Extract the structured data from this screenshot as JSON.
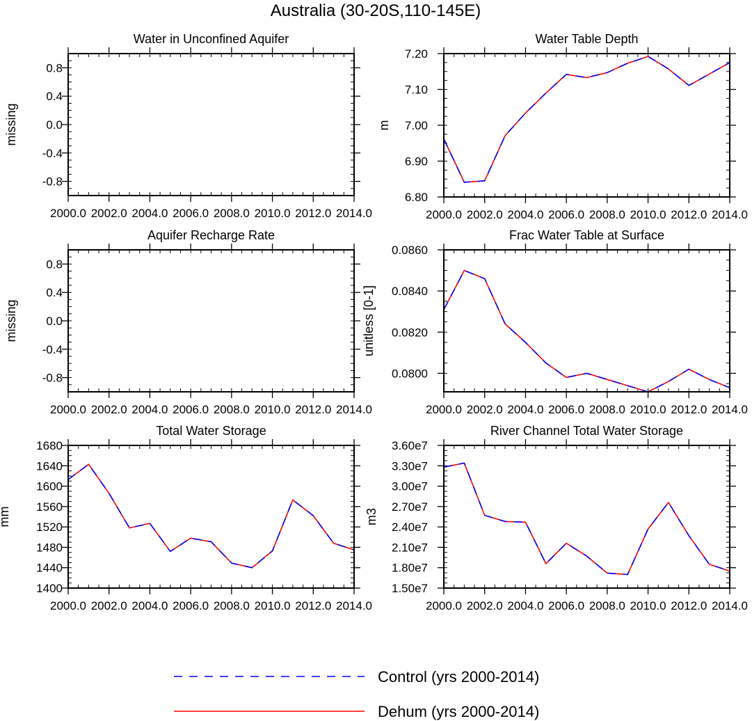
{
  "title": "Australia (30-20S,110-145E)",
  "colors": {
    "control": "#0000ff",
    "dehum": "#ff0000",
    "axis": "#000000"
  },
  "legend": [
    {
      "label": "Control (yrs 2000-2014)",
      "color": "#0000ff",
      "style": "dashed"
    },
    {
      "label": "Dehum (yrs 2000-2014)",
      "color": "#ff0000",
      "style": "solid"
    }
  ],
  "chart_data": [
    {
      "type": "line",
      "title": "Water in Unconfined Aquifer",
      "ylabel": "missing",
      "xlabel": "",
      "xlim": [
        2000,
        2014
      ],
      "ylim": [
        -1.0,
        1.0
      ],
      "x_ticks": [
        2000,
        2002,
        2004,
        2006,
        2008,
        2010,
        2012,
        2014
      ],
      "x_tick_labels": [
        "2000.0",
        "2002.0",
        "2004.0",
        "2006.0",
        "2008.0",
        "2010.0",
        "2012.0",
        "2014.0"
      ],
      "y_ticks": [
        0.8,
        0.4,
        0.0,
        -0.4,
        -0.8
      ],
      "y_tick_labels": [
        "0.8",
        "0.4",
        "0.0",
        "-0.4",
        "-0.8"
      ],
      "x": [],
      "series": []
    },
    {
      "type": "line",
      "title": "Water Table Depth",
      "ylabel": "m",
      "xlabel": "",
      "xlim": [
        2000,
        2014
      ],
      "ylim": [
        6.8,
        7.2
      ],
      "x_ticks": [
        2000,
        2002,
        2004,
        2006,
        2008,
        2010,
        2012,
        2014
      ],
      "x_tick_labels": [
        "2000.0",
        "2002.0",
        "2004.0",
        "2006.0",
        "2008.0",
        "2010.0",
        "2012.0",
        "2014.0"
      ],
      "y_ticks": [
        7.2,
        7.1,
        7.0,
        6.9,
        6.8
      ],
      "y_tick_labels": [
        "7.20",
        "7.10",
        "7.00",
        "6.90",
        "6.80"
      ],
      "x": [
        2000,
        2001,
        2002,
        2003,
        2004,
        2005,
        2006,
        2007,
        2008,
        2009,
        2010,
        2011,
        2012,
        2013,
        2014
      ],
      "series": [
        {
          "key": "control",
          "values": [
            6.962,
            6.841,
            6.845,
            6.971,
            7.034,
            7.09,
            7.142,
            7.133,
            7.147,
            7.173,
            7.192,
            7.157,
            7.111,
            7.143,
            7.175
          ]
        },
        {
          "key": "dehum",
          "values": [
            6.962,
            6.841,
            6.845,
            6.971,
            7.034,
            7.09,
            7.142,
            7.133,
            7.147,
            7.173,
            7.192,
            7.157,
            7.111,
            7.143,
            7.175
          ]
        }
      ]
    },
    {
      "type": "line",
      "title": "Aquifer Recharge Rate",
      "ylabel": "missing",
      "xlabel": "",
      "xlim": [
        2000,
        2014
      ],
      "ylim": [
        -1.0,
        1.0
      ],
      "x_ticks": [
        2000,
        2002,
        2004,
        2006,
        2008,
        2010,
        2012,
        2014
      ],
      "x_tick_labels": [
        "2000.0",
        "2002.0",
        "2004.0",
        "2006.0",
        "2008.0",
        "2010.0",
        "2012.0",
        "2014.0"
      ],
      "y_ticks": [
        0.8,
        0.4,
        0.0,
        -0.4,
        -0.8
      ],
      "y_tick_labels": [
        "0.8",
        "0.4",
        "0.0",
        "-0.4",
        "-0.8"
      ],
      "x": [],
      "series": []
    },
    {
      "type": "line",
      "title": "Frac Water Table at Surface",
      "ylabel": "unitless [0-1]",
      "xlabel": "",
      "xlim": [
        2000,
        2014
      ],
      "ylim": [
        0.0791,
        0.086
      ],
      "x_ticks": [
        2000,
        2002,
        2004,
        2006,
        2008,
        2010,
        2012,
        2014
      ],
      "x_tick_labels": [
        "2000.0",
        "2002.0",
        "2004.0",
        "2006.0",
        "2008.0",
        "2010.0",
        "2012.0",
        "2014.0"
      ],
      "y_ticks": [
        0.086,
        0.084,
        0.082,
        0.08
      ],
      "y_tick_labels": [
        "0.0860",
        "0.0840",
        "0.0820",
        "0.0800"
      ],
      "x": [
        2000,
        2001,
        2002,
        2003,
        2004,
        2005,
        2006,
        2007,
        2008,
        2009,
        2010,
        2011,
        2012,
        2013,
        2014
      ],
      "series": [
        {
          "key": "control",
          "values": [
            0.0831,
            0.085,
            0.0846,
            0.0824,
            0.0815,
            0.0805,
            0.0798,
            0.08,
            0.0797,
            0.0794,
            0.0791,
            0.0796,
            0.0802,
            0.0797,
            0.0793
          ]
        },
        {
          "key": "dehum",
          "values": [
            0.0831,
            0.085,
            0.0846,
            0.0824,
            0.0815,
            0.0805,
            0.0798,
            0.08,
            0.0797,
            0.0794,
            0.0791,
            0.0796,
            0.0802,
            0.0797,
            0.0793
          ]
        }
      ]
    },
    {
      "type": "line",
      "title": "Total Water Storage",
      "ylabel": "mm",
      "xlabel": "",
      "xlim": [
        2000,
        2014
      ],
      "ylim": [
        1400,
        1680
      ],
      "x_ticks": [
        2000,
        2002,
        2004,
        2006,
        2008,
        2010,
        2012,
        2014
      ],
      "x_tick_labels": [
        "2000.0",
        "2002.0",
        "2004.0",
        "2006.0",
        "2008.0",
        "2010.0",
        "2012.0",
        "2014.0"
      ],
      "y_ticks": [
        1680,
        1640,
        1600,
        1560,
        1520,
        1480,
        1440,
        1400
      ],
      "y_tick_labels": [
        "1680",
        "1640",
        "1600",
        "1560",
        "1520",
        "1480",
        "1440",
        "1400"
      ],
      "x": [
        2000,
        2001,
        2002,
        2003,
        2004,
        2005,
        2006,
        2007,
        2008,
        2009,
        2010,
        2011,
        2012,
        2013,
        2014
      ],
      "series": [
        {
          "key": "control",
          "values": [
            1613,
            1643,
            1586,
            1518,
            1527,
            1472,
            1498,
            1491,
            1449,
            1440,
            1473,
            1573,
            1542,
            1488,
            1475
          ]
        },
        {
          "key": "dehum",
          "values": [
            1613,
            1643,
            1586,
            1518,
            1527,
            1472,
            1498,
            1491,
            1449,
            1440,
            1473,
            1573,
            1542,
            1488,
            1475
          ]
        }
      ]
    },
    {
      "type": "line",
      "title": "River Channel Total Water Storage",
      "ylabel": "m3",
      "xlabel": "",
      "xlim": [
        2000,
        2014
      ],
      "ylim": [
        15000000,
        36000000
      ],
      "x_ticks": [
        2000,
        2002,
        2004,
        2006,
        2008,
        2010,
        2012,
        2014
      ],
      "x_tick_labels": [
        "2000.0",
        "2002.0",
        "2004.0",
        "2006.0",
        "2008.0",
        "2010.0",
        "2012.0",
        "2014.0"
      ],
      "y_ticks": [
        36000000,
        33000000,
        30000000,
        27000000,
        24000000,
        21000000,
        18000000,
        15000000
      ],
      "y_tick_labels": [
        "3.60e7",
        "3.30e7",
        "3.00e7",
        "2.70e7",
        "2.40e7",
        "2.10e7",
        "1.80e7",
        "1.50e7"
      ],
      "x": [
        2000,
        2001,
        2002,
        2003,
        2004,
        2005,
        2006,
        2007,
        2008,
        2009,
        2010,
        2011,
        2012,
        2013,
        2014
      ],
      "series": [
        {
          "key": "control",
          "values": [
            32800000,
            33400000,
            25700000,
            24800000,
            24700000,
            18600000,
            21600000,
            19700000,
            17200000,
            17000000,
            23700000,
            27600000,
            22700000,
            18500000,
            17500000
          ]
        },
        {
          "key": "dehum",
          "values": [
            32800000,
            33400000,
            25700000,
            24800000,
            24700000,
            18600000,
            21600000,
            19700000,
            17200000,
            17000000,
            23700000,
            27600000,
            22700000,
            18500000,
            17500000
          ]
        }
      ]
    }
  ]
}
